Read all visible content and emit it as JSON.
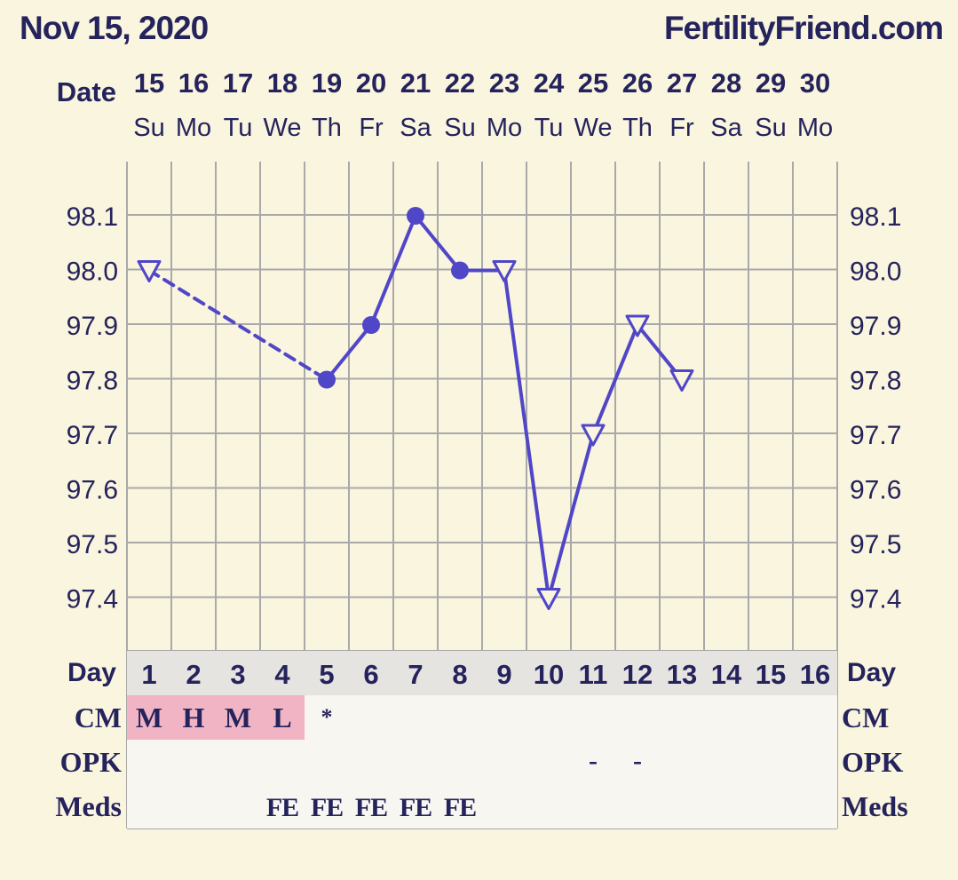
{
  "header": {
    "date_title": "Nov 15, 2020",
    "site": "FertilityFriend.com"
  },
  "labels": {
    "date": "Date",
    "day": "Day",
    "cm": "CM",
    "opk": "OPK",
    "meds": "Meds"
  },
  "colors": {
    "background": "#faf5de",
    "grid": "#a9a9a9",
    "line": "#5046c8",
    "text": "#25235c",
    "cm_highlight": "#f0b4c4",
    "day_row": "#e6e4e0",
    "cell": "#f8f6f0"
  },
  "chart_data": {
    "type": "line",
    "dates": [
      "15",
      "16",
      "17",
      "18",
      "19",
      "20",
      "21",
      "22",
      "23",
      "24",
      "25",
      "26",
      "27",
      "28",
      "29",
      "30"
    ],
    "weekdays": [
      "Su",
      "Mo",
      "Tu",
      "We",
      "Th",
      "Fr",
      "Sa",
      "Su",
      "Mo",
      "Tu",
      "We",
      "Th",
      "Fr",
      "Sa",
      "Su",
      "Mo"
    ],
    "cycle_days": [
      "1",
      "2",
      "3",
      "4",
      "5",
      "6",
      "7",
      "8",
      "9",
      "10",
      "11",
      "12",
      "13",
      "14",
      "15",
      "16"
    ],
    "temperatures": [
      98.0,
      null,
      null,
      null,
      97.8,
      97.9,
      98.1,
      98.0,
      98.0,
      97.4,
      97.7,
      97.9,
      97.8,
      null,
      null,
      null
    ],
    "point_markers": [
      "open-triangle",
      null,
      null,
      null,
      "filled-circle",
      "filled-circle",
      "filled-circle",
      "filled-circle",
      "open-triangle",
      "open-triangle",
      "open-triangle",
      "open-triangle",
      "open-triangle",
      null,
      null,
      null
    ],
    "dashed_segments": [
      [
        0,
        4
      ]
    ],
    "y_ticks": [
      "98.1",
      "98.0",
      "97.9",
      "97.8",
      "97.7",
      "97.6",
      "97.5",
      "97.4"
    ],
    "ylim": [
      97.3,
      98.2
    ],
    "grid": true,
    "cm": [
      "M",
      "H",
      "M",
      "L",
      "*",
      "",
      "",
      "",
      "",
      "",
      "",
      "",
      "",
      "",
      "",
      ""
    ],
    "cm_highlight": [
      true,
      true,
      true,
      true,
      false,
      false,
      false,
      false,
      false,
      false,
      false,
      false,
      false,
      false,
      false,
      false
    ],
    "opk": [
      "",
      "",
      "",
      "",
      "",
      "",
      "",
      "",
      "",
      "",
      "-",
      "-",
      "",
      "",
      "",
      ""
    ],
    "meds": [
      "",
      "",
      "",
      "FE",
      "FE",
      "FE",
      "FE",
      "FE",
      "",
      "",
      "",
      "",
      "",
      "",
      "",
      ""
    ]
  }
}
